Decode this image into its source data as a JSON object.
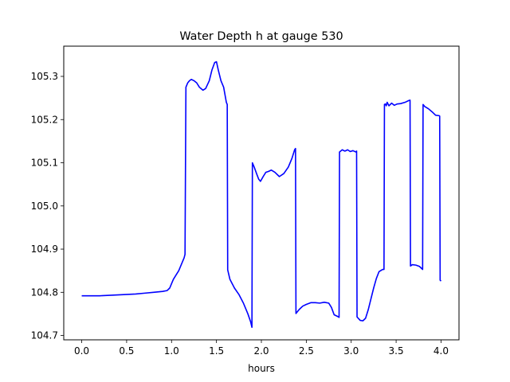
{
  "chart_data": {
    "type": "line",
    "title": "Water Depth h at gauge 530",
    "xlabel": "hours",
    "ylabel": "",
    "xlim": [
      -0.2,
      4.2
    ],
    "ylim": [
      104.69,
      105.37
    ],
    "xticks": [
      0.0,
      0.5,
      1.0,
      1.5,
      2.0,
      2.5,
      3.0,
      3.5,
      4.0
    ],
    "xtick_labels": [
      "0.0",
      "0.5",
      "1.0",
      "1.5",
      "2.0",
      "2.5",
      "3.0",
      "3.5",
      "4.0"
    ],
    "yticks": [
      104.7,
      104.8,
      104.9,
      105.0,
      105.1,
      105.2,
      105.3
    ],
    "ytick_labels": [
      "104.7",
      "104.8",
      "104.9",
      "105.0",
      "105.1",
      "105.2",
      "105.3"
    ],
    "grid": false,
    "legend": "none",
    "series": [
      {
        "color": "#0000ff",
        "x": [
          0.0,
          0.2,
          0.4,
          0.6,
          0.7,
          0.8,
          0.9,
          0.95,
          0.98,
          1.0,
          1.02,
          1.05,
          1.08,
          1.11,
          1.14,
          1.15,
          1.16,
          1.18,
          1.2,
          1.22,
          1.25,
          1.28,
          1.31,
          1.35,
          1.38,
          1.42,
          1.45,
          1.48,
          1.5,
          1.52,
          1.55,
          1.58,
          1.61,
          1.62,
          1.625,
          1.65,
          1.7,
          1.75,
          1.8,
          1.85,
          1.88,
          1.895,
          1.9,
          1.92,
          1.95,
          1.97,
          1.99,
          2.02,
          2.05,
          2.08,
          2.11,
          2.15,
          2.2,
          2.25,
          2.3,
          2.34,
          2.37,
          2.38,
          2.385,
          2.42,
          2.46,
          2.5,
          2.55,
          2.6,
          2.65,
          2.7,
          2.75,
          2.78,
          2.81,
          2.84,
          2.86,
          2.865,
          2.87,
          2.9,
          2.93,
          2.96,
          2.99,
          3.02,
          3.05,
          3.06,
          3.065,
          3.1,
          3.13,
          3.16,
          3.19,
          3.22,
          3.25,
          3.28,
          3.31,
          3.35,
          3.365,
          3.37,
          3.38,
          3.39,
          3.4,
          3.42,
          3.45,
          3.48,
          3.51,
          3.55,
          3.6,
          3.64,
          3.655,
          3.66,
          3.68,
          3.72,
          3.76,
          3.795,
          3.8,
          3.82,
          3.86,
          3.9,
          3.94,
          3.98,
          3.985,
          3.99,
          4.0
        ],
        "y": [
          104.792,
          104.792,
          104.794,
          104.796,
          104.798,
          104.8,
          104.802,
          104.804,
          104.81,
          104.82,
          104.83,
          104.84,
          104.85,
          104.865,
          104.88,
          104.888,
          105.275,
          105.285,
          105.29,
          105.293,
          105.29,
          105.285,
          105.275,
          105.268,
          105.272,
          105.29,
          105.315,
          105.332,
          105.334,
          105.315,
          105.29,
          105.275,
          105.24,
          105.235,
          104.852,
          104.83,
          104.81,
          104.795,
          104.775,
          104.75,
          104.732,
          104.719,
          105.1,
          105.09,
          105.073,
          105.062,
          105.057,
          105.068,
          105.078,
          105.08,
          105.083,
          105.078,
          105.068,
          105.075,
          105.09,
          105.11,
          105.13,
          105.133,
          104.751,
          104.76,
          104.768,
          104.772,
          104.776,
          104.776,
          104.775,
          104.777,
          104.775,
          104.765,
          104.748,
          104.745,
          104.743,
          104.742,
          105.125,
          105.13,
          105.127,
          105.13,
          105.126,
          105.128,
          105.125,
          105.127,
          104.743,
          104.735,
          104.734,
          104.74,
          104.76,
          104.785,
          104.81,
          104.832,
          104.848,
          104.853,
          104.853,
          105.235,
          105.236,
          105.232,
          105.24,
          105.232,
          105.238,
          105.233,
          105.236,
          105.237,
          105.24,
          105.244,
          105.245,
          104.861,
          104.864,
          104.863,
          104.86,
          104.853,
          105.235,
          105.23,
          105.225,
          105.218,
          105.21,
          105.209,
          105.208,
          104.828,
          104.826
        ]
      }
    ]
  }
}
